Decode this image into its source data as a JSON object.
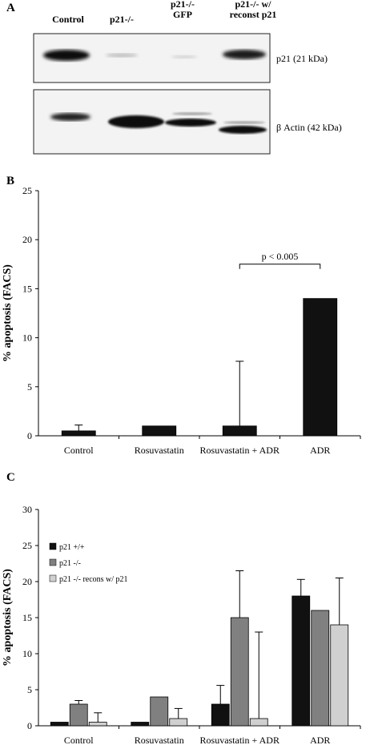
{
  "panel_a": {
    "letter": "A",
    "lanes": [
      "Control",
      "p21-/-",
      "p21-/-\nGFP",
      "p21-/-  w/\nreconst p21"
    ],
    "band_labels": [
      "p21 (21 kDa)",
      "β Actin (42 kDa)"
    ]
  },
  "chart_data": [
    {
      "type": "bar",
      "panel": "B",
      "categories": [
        "Control",
        "Rosuvastatin",
        "Rosuvastatin + ADR",
        "ADR"
      ],
      "values": [
        0.5,
        1.0,
        1.0,
        14.0
      ],
      "error_upper": [
        1.1,
        1.0,
        7.6,
        14.0
      ],
      "ylabel": "% apoptosis (FACS)",
      "ylim": [
        0,
        25
      ],
      "yticks": [
        0,
        5,
        10,
        15,
        20,
        25
      ],
      "annotation": "p < 0.005",
      "grid": false
    },
    {
      "type": "bar",
      "panel": "C",
      "categories": [
        "Control",
        "Rosuvastatin",
        "Rosuvastatin + ADR",
        "ADR"
      ],
      "series": [
        {
          "name": "p21 +/+",
          "values": [
            0.5,
            0.5,
            3.0,
            18.0
          ],
          "error_upper": [
            0.5,
            0.5,
            5.6,
            20.3
          ],
          "color": "#111111"
        },
        {
          "name": "p21 -/-",
          "values": [
            3.0,
            4.0,
            15.0,
            16.0
          ],
          "error_upper": [
            3.5,
            4.0,
            21.5,
            16.0
          ],
          "color": "#808080"
        },
        {
          "name": "p21 -/- recons w/ p21",
          "values": [
            0.5,
            1.0,
            1.0,
            14.0
          ],
          "error_upper": [
            1.8,
            2.4,
            13.0,
            20.5
          ],
          "color": "#d0d0d0"
        }
      ],
      "ylabel": "% apoptosis (FACS)",
      "ylim": [
        0,
        30
      ],
      "yticks": [
        0,
        5,
        10,
        15,
        20,
        25,
        30
      ],
      "legend": "top-left",
      "grid": false
    }
  ]
}
